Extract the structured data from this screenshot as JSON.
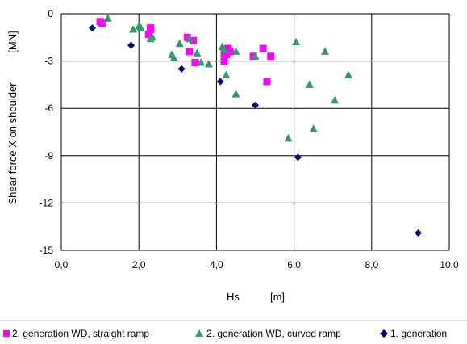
{
  "chart_data": {
    "type": "scatter",
    "xlabel": "Hs",
    "xunit": "[m]",
    "ylabel": "Shear force X on shoulder",
    "yunit": "[MN]",
    "xlim": [
      0,
      10
    ],
    "ylim": [
      -15,
      0
    ],
    "xticks": [
      "0,0",
      "2,0",
      "4,0",
      "6,0",
      "8,0",
      "10,0"
    ],
    "yticks": [
      "0",
      "-3",
      "-6",
      "-9",
      "-12",
      "-15"
    ],
    "grid": true,
    "legend_position": "bottom",
    "series": [
      {
        "name": "2. generation WD, straight ramp",
        "marker": "square",
        "color": "#ff00ff",
        "points": [
          [
            1.0,
            -0.5
          ],
          [
            1.05,
            -0.6
          ],
          [
            2.3,
            -0.9
          ],
          [
            2.3,
            -1.0
          ],
          [
            2.25,
            -1.3
          ],
          [
            3.25,
            -1.5
          ],
          [
            3.3,
            -2.4
          ],
          [
            3.4,
            -1.7
          ],
          [
            3.45,
            -3.1
          ],
          [
            4.2,
            -2.5
          ],
          [
            4.2,
            -3.0
          ],
          [
            4.25,
            -2.6
          ],
          [
            4.3,
            -2.2
          ],
          [
            4.35,
            -2.4
          ],
          [
            4.95,
            -2.7
          ],
          [
            5.2,
            -2.2
          ],
          [
            5.3,
            -4.3
          ],
          [
            5.4,
            -2.7
          ]
        ]
      },
      {
        "name": "2. generation WD, curved ramp",
        "marker": "triangle",
        "color": "#339966",
        "points": [
          [
            1.2,
            -0.3
          ],
          [
            1.85,
            -1.0
          ],
          [
            2.0,
            -0.8
          ],
          [
            2.05,
            -0.9
          ],
          [
            2.3,
            -1.6
          ],
          [
            2.35,
            -1.5
          ],
          [
            2.85,
            -2.6
          ],
          [
            2.9,
            -2.8
          ],
          [
            3.05,
            -1.9
          ],
          [
            3.3,
            -1.6
          ],
          [
            3.5,
            -2.5
          ],
          [
            3.6,
            -3.1
          ],
          [
            3.8,
            -3.2
          ],
          [
            4.15,
            -2.1
          ],
          [
            4.2,
            -2.3
          ],
          [
            4.25,
            -3.9
          ],
          [
            4.5,
            -2.4
          ],
          [
            4.5,
            -5.1
          ],
          [
            5.0,
            -2.7
          ],
          [
            5.85,
            -7.9
          ],
          [
            6.05,
            -1.8
          ],
          [
            6.4,
            -4.5
          ],
          [
            6.5,
            -7.3
          ],
          [
            6.8,
            -2.4
          ],
          [
            7.05,
            -5.5
          ],
          [
            7.4,
            -3.9
          ]
        ]
      },
      {
        "name": "1. generation",
        "marker": "diamond",
        "color": "#000080",
        "points": [
          [
            0.8,
            -0.9
          ],
          [
            1.8,
            -2.0
          ],
          [
            3.1,
            -3.5
          ],
          [
            4.1,
            -4.3
          ],
          [
            5.0,
            -5.8
          ],
          [
            6.1,
            -9.1
          ],
          [
            9.2,
            -13.9
          ]
        ]
      }
    ]
  }
}
